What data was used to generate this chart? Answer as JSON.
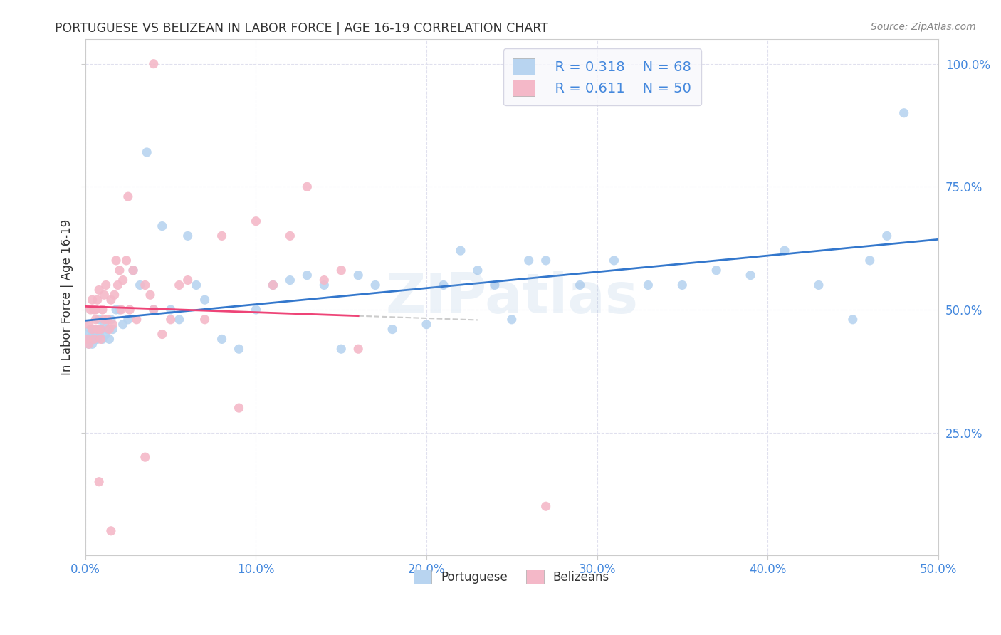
{
  "title": "PORTUGUESE VS BELIZEAN IN LABOR FORCE | AGE 16-19 CORRELATION CHART",
  "source": "Source: ZipAtlas.com",
  "ylabel": "In Labor Force | Age 16-19",
  "xlim": [
    0.0,
    0.5
  ],
  "ylim": [
    0.0,
    1.05
  ],
  "xticks": [
    0.0,
    0.1,
    0.2,
    0.3,
    0.4,
    0.5
  ],
  "yticks": [
    0.25,
    0.5,
    0.75,
    1.0
  ],
  "xtick_labels": [
    "0.0%",
    "10.0%",
    "20.0%",
    "30.0%",
    "40.0%",
    "50.0%"
  ],
  "ytick_labels": [
    "25.0%",
    "50.0%",
    "75.0%",
    "100.0%"
  ],
  "blue_color": "#b8d4f0",
  "pink_color": "#f4b8c8",
  "blue_line_color": "#3377cc",
  "pink_line_color": "#ee4477",
  "pink_dash_color": "#cccccc",
  "R_blue": "0.318",
  "N_blue": "68",
  "R_pink": "0.611",
  "N_pink": "50",
  "watermark": "ZIPatlas",
  "legend_text_color": "#4488dd",
  "legend_label_color": "#333333",
  "title_color": "#333333",
  "source_color": "#888888",
  "ylabel_color": "#333333",
  "grid_color": "#e0e0ee",
  "portuguese_x": [
    0.001,
    0.002,
    0.002,
    0.003,
    0.003,
    0.004,
    0.004,
    0.005,
    0.005,
    0.006,
    0.006,
    0.007,
    0.007,
    0.008,
    0.008,
    0.009,
    0.01,
    0.011,
    0.012,
    0.013,
    0.014,
    0.015,
    0.016,
    0.018,
    0.02,
    0.022,
    0.025,
    0.028,
    0.032,
    0.036,
    0.04,
    0.045,
    0.05,
    0.055,
    0.06,
    0.065,
    0.07,
    0.08,
    0.09,
    0.1,
    0.11,
    0.12,
    0.13,
    0.14,
    0.15,
    0.16,
    0.17,
    0.18,
    0.2,
    0.21,
    0.22,
    0.23,
    0.24,
    0.25,
    0.26,
    0.27,
    0.29,
    0.31,
    0.33,
    0.35,
    0.37,
    0.39,
    0.41,
    0.43,
    0.45,
    0.46,
    0.47,
    0.48
  ],
  "portuguese_y": [
    0.44,
    0.43,
    0.45,
    0.44,
    0.46,
    0.45,
    0.43,
    0.44,
    0.46,
    0.44,
    0.45,
    0.46,
    0.44,
    0.45,
    0.48,
    0.46,
    0.44,
    0.47,
    0.45,
    0.46,
    0.44,
    0.48,
    0.46,
    0.5,
    0.5,
    0.47,
    0.48,
    0.58,
    0.55,
    0.82,
    0.5,
    0.67,
    0.5,
    0.48,
    0.65,
    0.55,
    0.52,
    0.44,
    0.42,
    0.5,
    0.55,
    0.56,
    0.57,
    0.55,
    0.42,
    0.57,
    0.55,
    0.46,
    0.47,
    0.55,
    0.62,
    0.58,
    0.55,
    0.48,
    0.6,
    0.6,
    0.55,
    0.6,
    0.55,
    0.55,
    0.58,
    0.57,
    0.62,
    0.55,
    0.48,
    0.6,
    0.65,
    0.9
  ],
  "belizean_x": [
    0.001,
    0.002,
    0.002,
    0.003,
    0.004,
    0.004,
    0.005,
    0.005,
    0.006,
    0.006,
    0.007,
    0.007,
    0.008,
    0.009,
    0.009,
    0.01,
    0.011,
    0.011,
    0.012,
    0.013,
    0.014,
    0.015,
    0.016,
    0.017,
    0.018,
    0.019,
    0.02,
    0.021,
    0.022,
    0.024,
    0.026,
    0.028,
    0.03,
    0.035,
    0.04,
    0.045,
    0.05,
    0.055,
    0.06,
    0.07,
    0.08,
    0.09,
    0.1,
    0.11,
    0.12,
    0.13,
    0.14,
    0.15,
    0.16,
    0.27
  ],
  "belizean_y": [
    0.44,
    0.47,
    0.43,
    0.5,
    0.46,
    0.52,
    0.44,
    0.5,
    0.5,
    0.48,
    0.52,
    0.46,
    0.54,
    0.44,
    0.46,
    0.5,
    0.53,
    0.48,
    0.55,
    0.48,
    0.46,
    0.52,
    0.47,
    0.53,
    0.6,
    0.55,
    0.58,
    0.5,
    0.56,
    0.6,
    0.5,
    0.58,
    0.48,
    0.55,
    0.5,
    0.45,
    0.48,
    0.55,
    0.56,
    0.48,
    0.65,
    0.3,
    0.68,
    0.55,
    0.65,
    0.75,
    0.56,
    0.58,
    0.42,
    0.1
  ],
  "pink_outlier_x": [
    0.008,
    0.015,
    0.025,
    0.035,
    0.038,
    0.04
  ],
  "pink_outlier_y": [
    0.15,
    0.05,
    0.73,
    0.2,
    0.53,
    1.0
  ]
}
